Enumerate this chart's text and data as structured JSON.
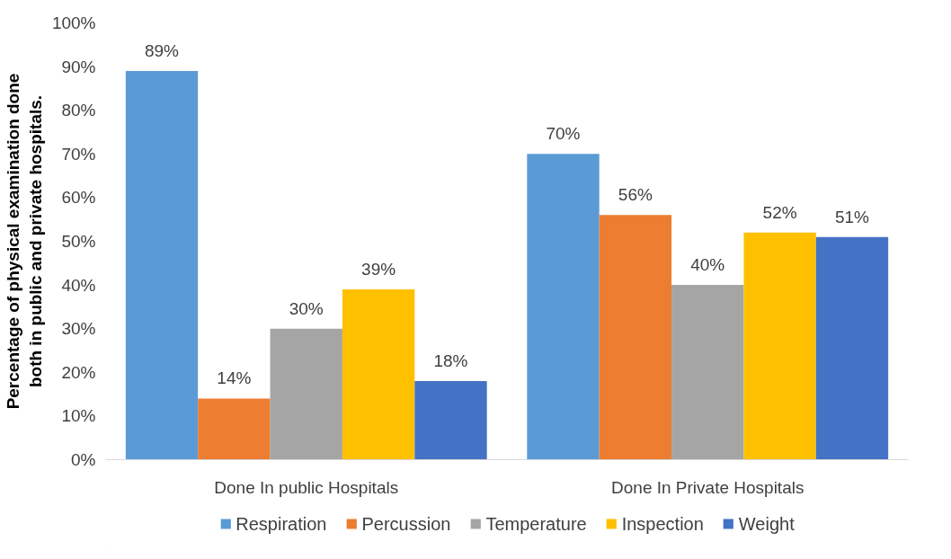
{
  "chart_data": {
    "type": "bar",
    "ylabel": "Percentage of physical examination done both in public and private hospitals.",
    "categories": [
      "Done In public Hospitals",
      "Done In Private Hospitals"
    ],
    "series": [
      {
        "name": "Respiration",
        "color": "#5b9bd5",
        "values": [
          89,
          70
        ],
        "value_labels": [
          "89%",
          "70%"
        ]
      },
      {
        "name": "Percussion",
        "color": "#ed7d31",
        "values": [
          14,
          56
        ],
        "value_labels": [
          "14%",
          "56%"
        ]
      },
      {
        "name": "Temperature",
        "color": "#a5a5a5",
        "values": [
          30,
          40
        ],
        "value_labels": [
          "30%",
          "40%"
        ]
      },
      {
        "name": "Inspection",
        "color": "#ffc000",
        "values": [
          39,
          52
        ],
        "value_labels": [
          "39%",
          "52%"
        ]
      },
      {
        "name": "Weight",
        "color": "#4472c4",
        "values": [
          18,
          51
        ],
        "value_labels": [
          "18%",
          "51%"
        ]
      }
    ],
    "ylim": [
      0,
      100
    ],
    "yticks": [
      {
        "value": 0,
        "label": "0%"
      },
      {
        "value": 10,
        "label": "10%"
      },
      {
        "value": 20,
        "label": "20%"
      },
      {
        "value": 30,
        "label": "30%"
      },
      {
        "value": 40,
        "label": "40%"
      },
      {
        "value": 50,
        "label": "50%"
      },
      {
        "value": 60,
        "label": "60%"
      },
      {
        "value": 70,
        "label": "70%"
      },
      {
        "value": 80,
        "label": "80%"
      },
      {
        "value": 90,
        "label": "90%"
      },
      {
        "value": 100,
        "label": "100%"
      }
    ],
    "grid": false,
    "legend": "bottom"
  }
}
